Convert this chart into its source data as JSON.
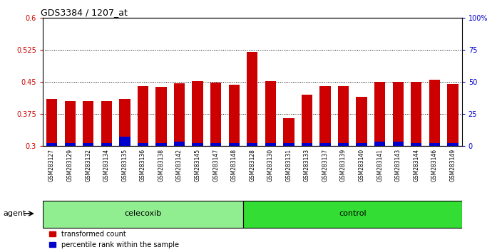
{
  "title": "GDS3384 / 1207_at",
  "samples": [
    "GSM283127",
    "GSM283129",
    "GSM283132",
    "GSM283134",
    "GSM283135",
    "GSM283136",
    "GSM283138",
    "GSM283142",
    "GSM283145",
    "GSM283147",
    "GSM283148",
    "GSM283128",
    "GSM283130",
    "GSM283131",
    "GSM283133",
    "GSM283137",
    "GSM283139",
    "GSM283140",
    "GSM283141",
    "GSM283143",
    "GSM283144",
    "GSM283146",
    "GSM283149"
  ],
  "red_values": [
    0.41,
    0.405,
    0.405,
    0.405,
    0.41,
    0.44,
    0.438,
    0.447,
    0.452,
    0.448,
    0.443,
    0.52,
    0.452,
    0.365,
    0.42,
    0.44,
    0.44,
    0.415,
    0.45,
    0.45,
    0.45,
    0.455,
    0.445
  ],
  "blue_values": [
    0.008,
    0.007,
    0.007,
    0.007,
    0.022,
    0.007,
    0.007,
    0.01,
    0.007,
    0.007,
    0.007,
    0.007,
    0.007,
    0.007,
    0.007,
    0.007,
    0.007,
    0.007,
    0.01,
    0.01,
    0.007,
    0.007,
    0.007
  ],
  "groups": [
    "celecoxib",
    "celecoxib",
    "celecoxib",
    "celecoxib",
    "celecoxib",
    "celecoxib",
    "celecoxib",
    "celecoxib",
    "celecoxib",
    "celecoxib",
    "celecoxib",
    "control",
    "control",
    "control",
    "control",
    "control",
    "control",
    "control",
    "control",
    "control",
    "control",
    "control",
    "control"
  ],
  "ylim_left": [
    0.3,
    0.6
  ],
  "ylim_right": [
    0,
    100
  ],
  "yticks_left": [
    0.3,
    0.375,
    0.45,
    0.525,
    0.6
  ],
  "yticks_right": [
    0,
    25,
    50,
    75,
    100
  ],
  "ytick_labels_left": [
    "0.3",
    "0.375",
    "0.45",
    "0.525",
    "0.6"
  ],
  "ytick_labels_right": [
    "0",
    "25",
    "50",
    "75",
    "100%"
  ],
  "hlines": [
    0.375,
    0.45,
    0.525
  ],
  "red_color": "#cc0000",
  "blue_color": "#0000cc",
  "bar_width": 0.6,
  "group_label": "agent",
  "celecoxib_color": "#90ee90",
  "control_color": "#33dd33",
  "xticklabel_bg": "#c8c8c8",
  "plot_bg": "#ffffff",
  "legend_red": "transformed count",
  "legend_blue": "percentile rank within the sample"
}
